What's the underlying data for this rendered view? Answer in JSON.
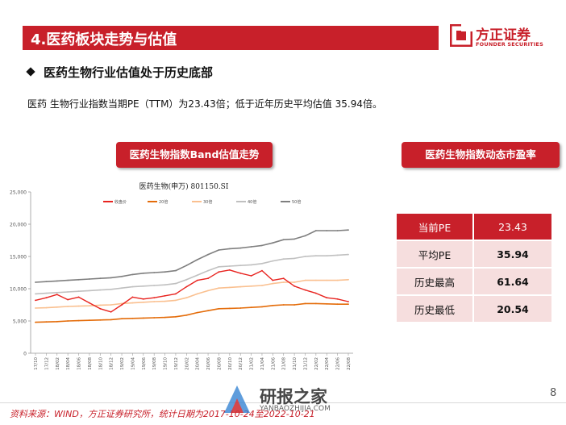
{
  "header": {
    "title": "4.医药板块走势与估值",
    "logo_cn": "方正证券",
    "logo_en": "FOUNDER SECURITIES"
  },
  "section_title": "医药生物行业估值处于历史底部",
  "description": "医药 生物行业指数当期PE（TTM）为23.43倍；低于近年历史平均估值  35.94倍。",
  "left_panel_title": "医药生物指数Band估值走势",
  "right_panel_title": "医药生物指数动态市盈率",
  "pe_table": [
    {
      "label": "当前PE",
      "value": "23.43"
    },
    {
      "label": "平均PE",
      "value": "35.94"
    },
    {
      "label": "历史最高",
      "value": "61.64"
    },
    {
      "label": "历史最低",
      "value": "20.54"
    }
  ],
  "footer": {
    "source": "资料来源：WIND，方正证券研究所，统计日期为2017-10-24至2022-10-21",
    "page": "8",
    "watermark": "研报之家",
    "watermark_url": "YANBAOZHIJIA.COM"
  },
  "colors": {
    "accent": "#c8202a",
    "table_body": "#f6dede"
  },
  "chart_data": {
    "type": "line",
    "title": "医药生物(申万) 801150.SI",
    "xlabel": "",
    "ylabel": "",
    "ylim": [
      0,
      25000
    ],
    "yticks": [
      "0",
      "5,000",
      "10,000",
      "15,000",
      "20,000",
      "25,000"
    ],
    "categories": [
      "17/10",
      "17/12",
      "18/02",
      "18/04",
      "18/06",
      "18/08",
      "18/10",
      "18/12",
      "19/02",
      "19/04",
      "19/06",
      "19/08",
      "19/10",
      "19/12",
      "20/02",
      "20/04",
      "20/06",
      "20/08",
      "20/10",
      "20/12",
      "21/02",
      "21/04",
      "21/06",
      "21/08",
      "21/10",
      "21/12",
      "22/02",
      "22/04",
      "22/06",
      "22/08"
    ],
    "series": [
      {
        "name": "收盘价",
        "color": "#e8231f",
        "values": [
          8200,
          8600,
          9100,
          8300,
          8700,
          7800,
          6900,
          6400,
          7500,
          8700,
          8400,
          8600,
          8900,
          9200,
          10300,
          11300,
          11600,
          12600,
          12900,
          12400,
          12000,
          12800,
          11300,
          11600,
          10400,
          9800,
          9300,
          8600,
          8400,
          8000
        ]
      },
      {
        "name": "20倍",
        "color": "#e46c0a",
        "values": [
          4800,
          4850,
          4900,
          5000,
          5050,
          5100,
          5150,
          5200,
          5350,
          5400,
          5450,
          5500,
          5550,
          5650,
          5900,
          6300,
          6600,
          6900,
          6950,
          7000,
          7100,
          7200,
          7400,
          7500,
          7500,
          7700,
          7700,
          7650,
          7600,
          7600
        ]
      },
      {
        "name": "30倍",
        "color": "#fac090",
        "values": [
          7000,
          7050,
          7150,
          7250,
          7300,
          7350,
          7450,
          7500,
          7700,
          7800,
          7900,
          8000,
          8050,
          8200,
          8600,
          9200,
          9700,
          10100,
          10200,
          10300,
          10400,
          10500,
          10800,
          11000,
          11000,
          11300,
          11300,
          11300,
          11300,
          11400
        ]
      },
      {
        "name": "40倍",
        "color": "#c0c0c0",
        "values": [
          9200,
          9300,
          9400,
          9500,
          9600,
          9700,
          9800,
          9900,
          10100,
          10300,
          10400,
          10500,
          10600,
          10800,
          11400,
          12100,
          12800,
          13400,
          13500,
          13600,
          13700,
          13900,
          14300,
          14600,
          14700,
          15000,
          15100,
          15100,
          15200,
          15300
        ]
      },
      {
        "name": "50倍",
        "color": "#7f7f7f",
        "values": [
          11000,
          11100,
          11200,
          11300,
          11400,
          11500,
          11600,
          11700,
          11900,
          12200,
          12400,
          12500,
          12600,
          12800,
          13600,
          14500,
          15300,
          16000,
          16200,
          16300,
          16500,
          16700,
          17100,
          17600,
          17700,
          18200,
          19000,
          19000,
          19000,
          19100
        ]
      }
    ]
  }
}
